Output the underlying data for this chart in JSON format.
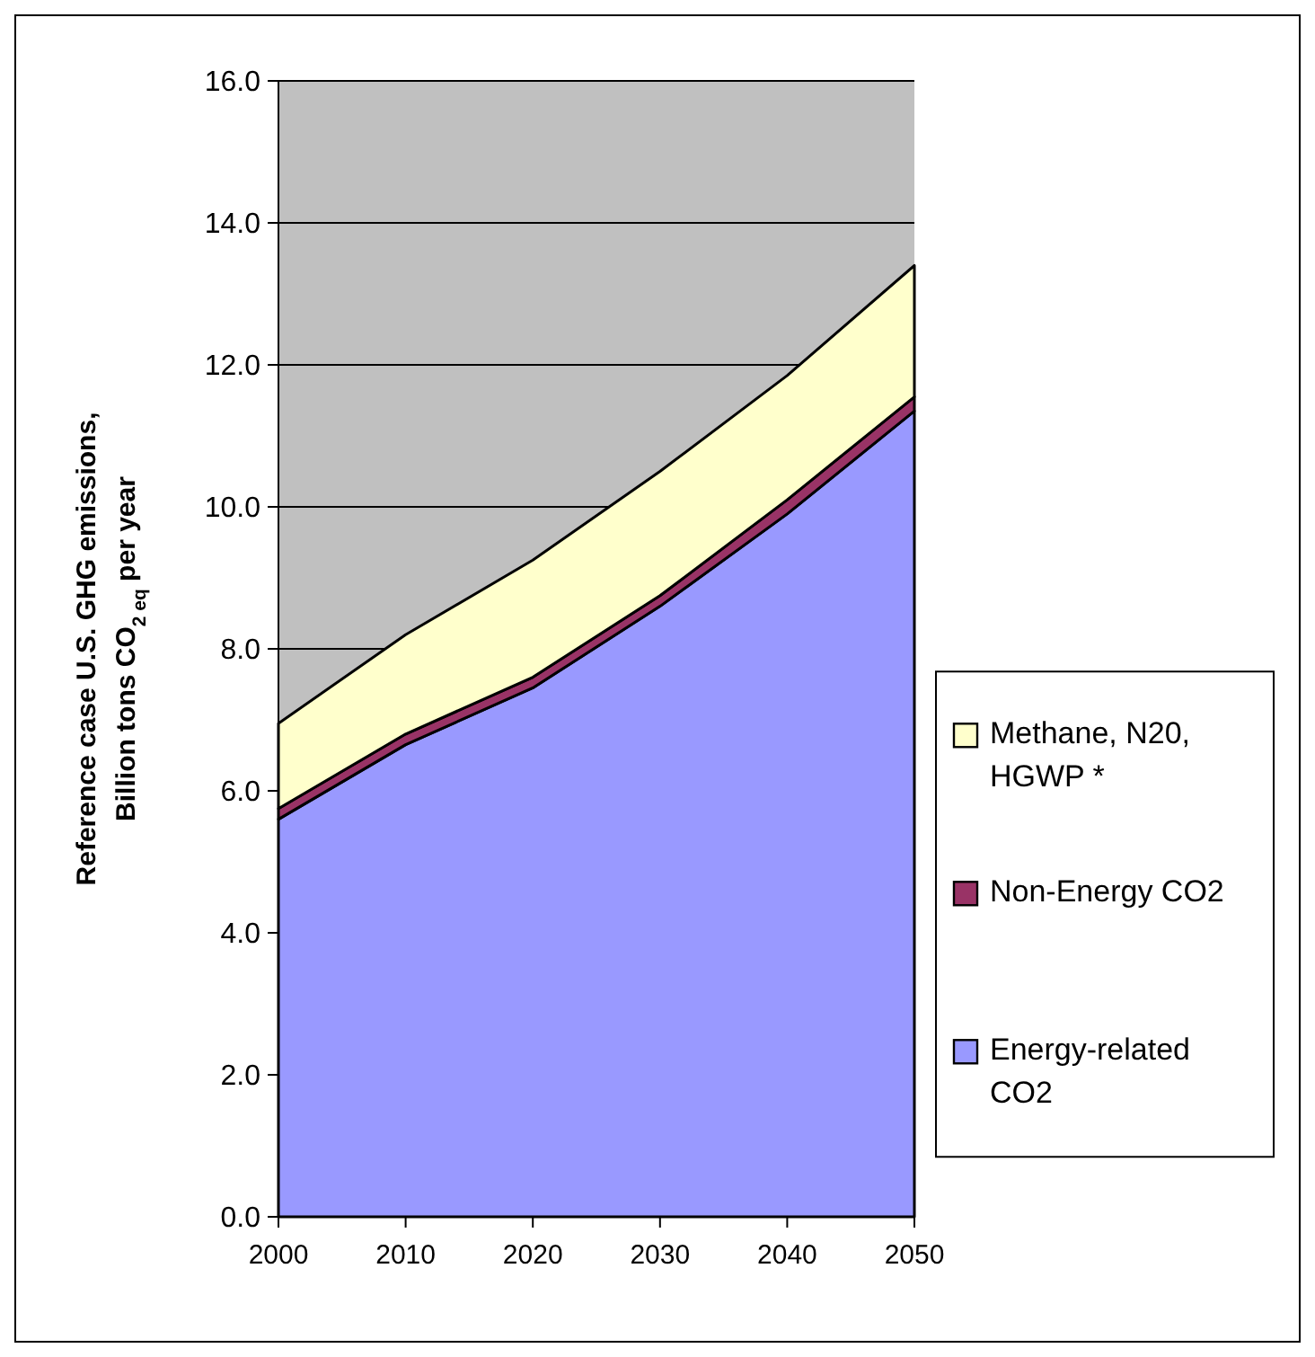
{
  "chart_data": {
    "type": "area",
    "stacked": true,
    "ylabel": "Reference case U.S. GHG emissions,\nBillion tons CO$_{2 eq}$ per year",
    "x": [
      2000,
      2010,
      2020,
      2030,
      2040,
      2050
    ],
    "xlim": [
      2000,
      2050
    ],
    "xticks": [
      2000,
      2010,
      2020,
      2030,
      2040,
      2050
    ],
    "ylim": [
      0,
      16
    ],
    "yticks": [
      {
        "value": 0,
        "label": "0.0"
      },
      {
        "value": 2,
        "label": "2.0"
      },
      {
        "value": 4,
        "label": "4.0"
      },
      {
        "value": 6,
        "label": "6.0"
      },
      {
        "value": 8,
        "label": "8.0"
      },
      {
        "value": 10,
        "label": "10.0"
      },
      {
        "value": 12,
        "label": "12.0"
      },
      {
        "value": 14,
        "label": "14.0"
      },
      {
        "value": 16,
        "label": "16.0"
      }
    ],
    "grid": "y",
    "legend": "right",
    "series": [
      {
        "name": "Energy-related CO2",
        "color": "#9999ff",
        "values": [
          5.6,
          6.65,
          7.45,
          8.6,
          9.9,
          11.35
        ]
      },
      {
        "name": "Non-Energy CO2",
        "color": "#993366",
        "values": [
          0.15,
          0.15,
          0.15,
          0.15,
          0.2,
          0.2
        ]
      },
      {
        "name": "Methane, N20, HGWP *",
        "color": "#ffffcc",
        "values": [
          1.2,
          1.4,
          1.65,
          1.75,
          1.75,
          1.85
        ]
      }
    ]
  }
}
